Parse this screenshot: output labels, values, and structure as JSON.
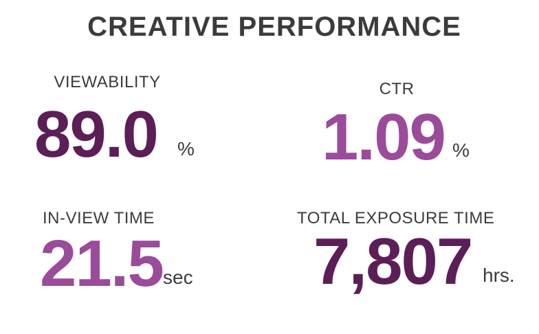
{
  "title": "CREATIVE PERFORMANCE",
  "metrics": [
    {
      "label": "VIEWABILITY",
      "value": "89.0",
      "unit": "%",
      "color": "#5b1e57"
    },
    {
      "label": "CTR",
      "value": "1.09",
      "unit": "%",
      "color": "#9a4b99"
    },
    {
      "label": "IN-VIEW TIME",
      "value": "21.5",
      "unit": "sec",
      "color": "#9a4b99"
    },
    {
      "label": "TOTAL EXPOSURE TIME",
      "value": "7,807",
      "unit": "hrs.",
      "color": "#5b1e57"
    }
  ]
}
